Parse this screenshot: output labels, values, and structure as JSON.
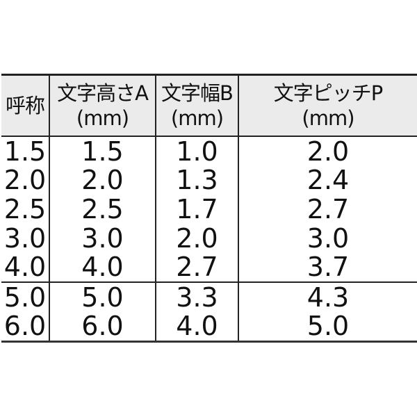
{
  "headers": [
    {
      "line1": "呼称",
      "line2": ""
    },
    {
      "line1": "文字高さA",
      "line2": "(mm)"
    },
    {
      "line1": "文字幅B",
      "line2": "(mm)"
    },
    {
      "line1": "文字ピッチP",
      "line2": "(mm)"
    }
  ],
  "rows": [
    [
      "1.5",
      "1.5",
      "1.0",
      "2.0"
    ],
    [
      "2.0",
      "2.0",
      "1.3",
      "2.4"
    ],
    [
      "2.5",
      "2.5",
      "1.7",
      "2.7"
    ],
    [
      "3.0",
      "3.0",
      "2.0",
      "3.0"
    ],
    [
      "4.0",
      "4.0",
      "2.7",
      "3.7"
    ],
    [
      "5.0",
      "5.0",
      "3.3",
      "4.3"
    ],
    [
      "6.0",
      "6.0",
      "4.0",
      "5.0"
    ]
  ]
}
